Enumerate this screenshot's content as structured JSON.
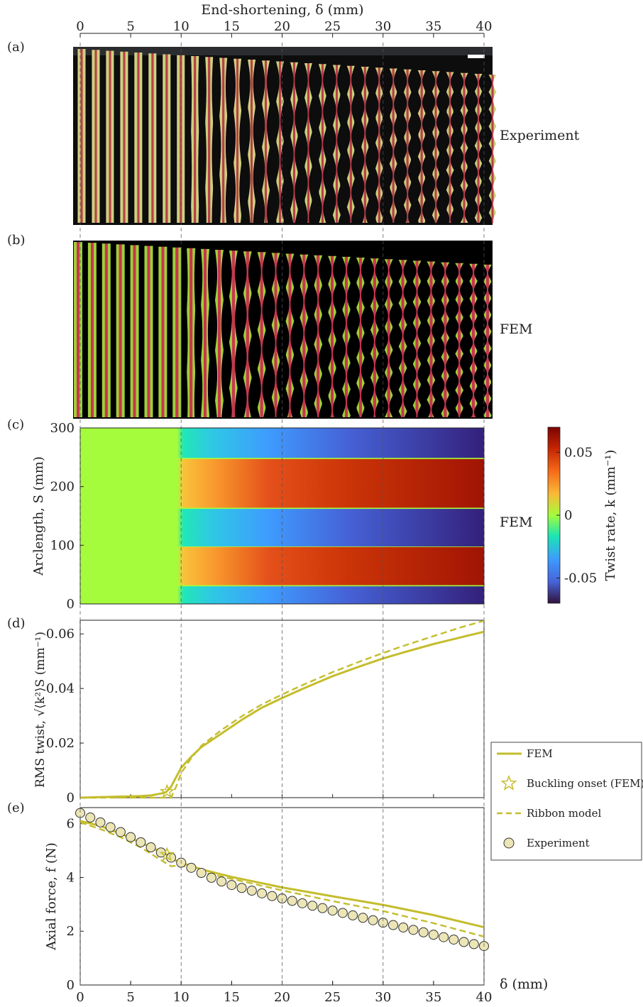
{
  "figure": {
    "top_axis_label": "End-shortening, δ (mm)",
    "panel_labels": [
      "(a)",
      "(b)",
      "(c)",
      "(d)",
      "(e)"
    ],
    "side_labels": {
      "a": "Experiment",
      "b": "FEM",
      "c": "FEM"
    },
    "x_ticks": [
      0,
      5,
      10,
      15,
      20,
      25,
      30,
      35,
      40
    ],
    "bottom_x_label": "δ (mm)",
    "strip_count": 30,
    "colors": {
      "olive": "#c4bd2c",
      "green": "#9fcf3a",
      "red": "#c9364f",
      "black": "#000000"
    }
  },
  "panel_c": {
    "ylabel": "Arclength, S (mm)",
    "yticks": [
      0,
      100,
      200,
      300
    ],
    "colorbar": {
      "label": "Twist rate, k (mm⁻¹)",
      "ticks": [
        "0.05",
        "0",
        "-0.05"
      ],
      "range": [
        -0.07,
        0.07
      ]
    }
  },
  "chart_data": [
    {
      "type": "line",
      "panel": "d",
      "ylabel": "RMS twist, √⟨k²⟩S (mm⁻¹)",
      "xlim": [
        0,
        40
      ],
      "ylim": [
        0,
        0.065
      ],
      "yticks": [
        "0",
        "0.02",
        "0.04",
        "0.06"
      ],
      "series": [
        {
          "name": "FEM",
          "style": "solid",
          "x": [
            0,
            2,
            4,
            6,
            7,
            8,
            8.5,
            9,
            9.5,
            10,
            11,
            12,
            14,
            16,
            18,
            20,
            22,
            25,
            28,
            30,
            32,
            35,
            38,
            40
          ],
          "y": [
            0,
            0.0002,
            0.0004,
            0.0006,
            0.0008,
            0.0015,
            0.002,
            0.004,
            0.0075,
            0.011,
            0.015,
            0.0185,
            0.0235,
            0.0285,
            0.033,
            0.0365,
            0.0398,
            0.0445,
            0.0485,
            0.051,
            0.0532,
            0.0563,
            0.059,
            0.0608
          ]
        },
        {
          "name": "Ribbon model",
          "style": "dashed",
          "x": [
            0,
            5,
            8,
            9,
            9.5,
            10,
            11,
            12,
            14,
            16,
            18,
            20,
            22,
            25,
            28,
            30,
            32,
            35,
            38,
            40
          ],
          "y": [
            0,
            0,
            0,
            0,
            0.004,
            0.009,
            0.0145,
            0.019,
            0.0248,
            0.0298,
            0.0342,
            0.0378,
            0.0412,
            0.046,
            0.0503,
            0.053,
            0.0556,
            0.0592,
            0.0627,
            0.0648
          ]
        },
        {
          "name": "Buckling onset (FEM)",
          "style": "marker-star",
          "x": [
            8.6
          ],
          "y": [
            0.0022
          ]
        }
      ]
    },
    {
      "type": "line",
      "panel": "e",
      "ylabel": "Axial force, f (N)",
      "xlim": [
        0,
        40
      ],
      "ylim": [
        0,
        6.6
      ],
      "yticks": [
        "0",
        "2",
        "4",
        "6"
      ],
      "series": [
        {
          "name": "FEM",
          "style": "solid",
          "x": [
            0,
            2,
            4,
            6,
            8,
            8.6,
            9,
            10,
            12,
            15,
            20,
            25,
            30,
            35,
            40
          ],
          "y": [
            6.1,
            5.92,
            5.63,
            5.3,
            4.95,
            4.85,
            4.7,
            4.55,
            4.3,
            4.02,
            3.63,
            3.3,
            2.98,
            2.6,
            2.15
          ]
        },
        {
          "name": "Ribbon model",
          "style": "dashed",
          "x": [
            0,
            2,
            4,
            6,
            8,
            9,
            10,
            11,
            12,
            15,
            20,
            25,
            30,
            35,
            40
          ],
          "y": [
            6.05,
            5.8,
            5.5,
            5.12,
            4.65,
            4.42,
            4.45,
            4.35,
            4.2,
            3.95,
            3.52,
            3.12,
            2.75,
            2.3,
            1.8
          ]
        },
        {
          "name": "Experiment",
          "style": "marker-circle",
          "x": [
            0,
            1,
            2,
            3,
            4,
            5,
            6,
            7,
            8,
            9,
            10,
            11,
            12,
            13,
            14,
            15,
            16,
            17,
            18,
            19,
            20,
            21,
            22,
            23,
            24,
            25,
            26,
            27,
            28,
            29,
            30,
            31,
            32,
            33,
            34,
            35,
            36,
            37,
            38,
            39,
            40
          ],
          "y": [
            6.4,
            6.23,
            6.05,
            5.87,
            5.69,
            5.5,
            5.31,
            5.12,
            4.93,
            4.74,
            4.55,
            4.36,
            4.17,
            3.99,
            3.85,
            3.72,
            3.61,
            3.51,
            3.41,
            3.31,
            3.22,
            3.13,
            3.04,
            2.95,
            2.86,
            2.77,
            2.68,
            2.59,
            2.5,
            2.41,
            2.32,
            2.23,
            2.14,
            2.05,
            1.96,
            1.87,
            1.78,
            1.69,
            1.6,
            1.52,
            1.45
          ]
        }
      ]
    }
  ],
  "legend": {
    "placement": "right",
    "items": [
      {
        "name": "FEM",
        "style": "solid"
      },
      {
        "name": "Buckling onset (FEM)",
        "style": "marker-star"
      },
      {
        "name": "Ribbon model",
        "style": "dashed"
      },
      {
        "name": "Experiment",
        "style": "marker-circle"
      }
    ]
  }
}
